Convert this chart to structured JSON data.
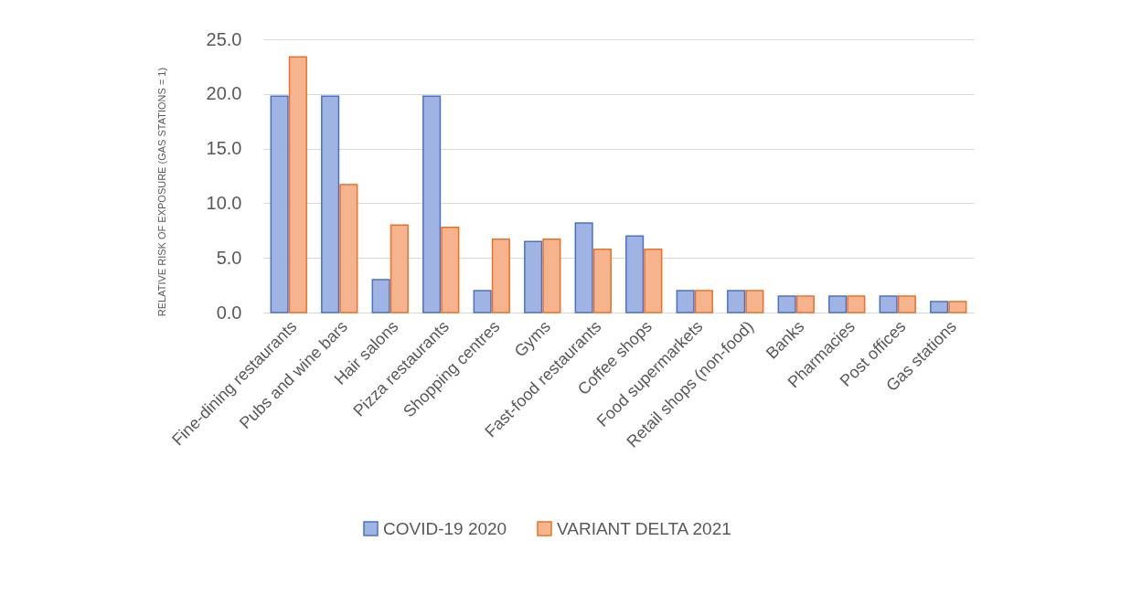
{
  "chart_data": {
    "type": "bar",
    "ylabel": "RELATIVE RISK OF EXPOSURE (GAS STATIONS = 1)",
    "categories": [
      "Fine-dining restaurants",
      "Pubs and wine bars",
      "Hair salons",
      "Pizza restaurants",
      "Shopping centres",
      "Gyms",
      "Fast-food restaurants",
      "Coffee shops",
      "Food supermarkets",
      "Retail shops (non-food)",
      "Banks",
      "Pharmacies",
      "Post offices",
      "Gas stations"
    ],
    "series": [
      {
        "name": "COVID-19 2020",
        "color": "#9fb4e3",
        "values": [
          19.8,
          19.8,
          3.0,
          19.8,
          2.0,
          6.5,
          8.2,
          7.0,
          2.0,
          2.0,
          1.5,
          1.5,
          1.5,
          1.0
        ]
      },
      {
        "name": "VARIANT DELTA 2021",
        "color": "#f5b48d",
        "values": [
          23.4,
          11.7,
          8.0,
          7.8,
          6.7,
          6.7,
          5.8,
          5.8,
          2.0,
          2.0,
          1.5,
          1.5,
          1.5,
          1.0
        ]
      }
    ],
    "ylim": [
      0,
      25
    ],
    "yticks": [
      {
        "value": 0,
        "label": "0.0"
      },
      {
        "value": 5,
        "label": "5.0"
      },
      {
        "value": 10,
        "label": "10.0"
      },
      {
        "value": 15,
        "label": "15.0"
      },
      {
        "value": 20,
        "label": "20.0"
      },
      {
        "value": 25,
        "label": "25.0"
      }
    ],
    "grid": "y",
    "legend": "bottom"
  }
}
